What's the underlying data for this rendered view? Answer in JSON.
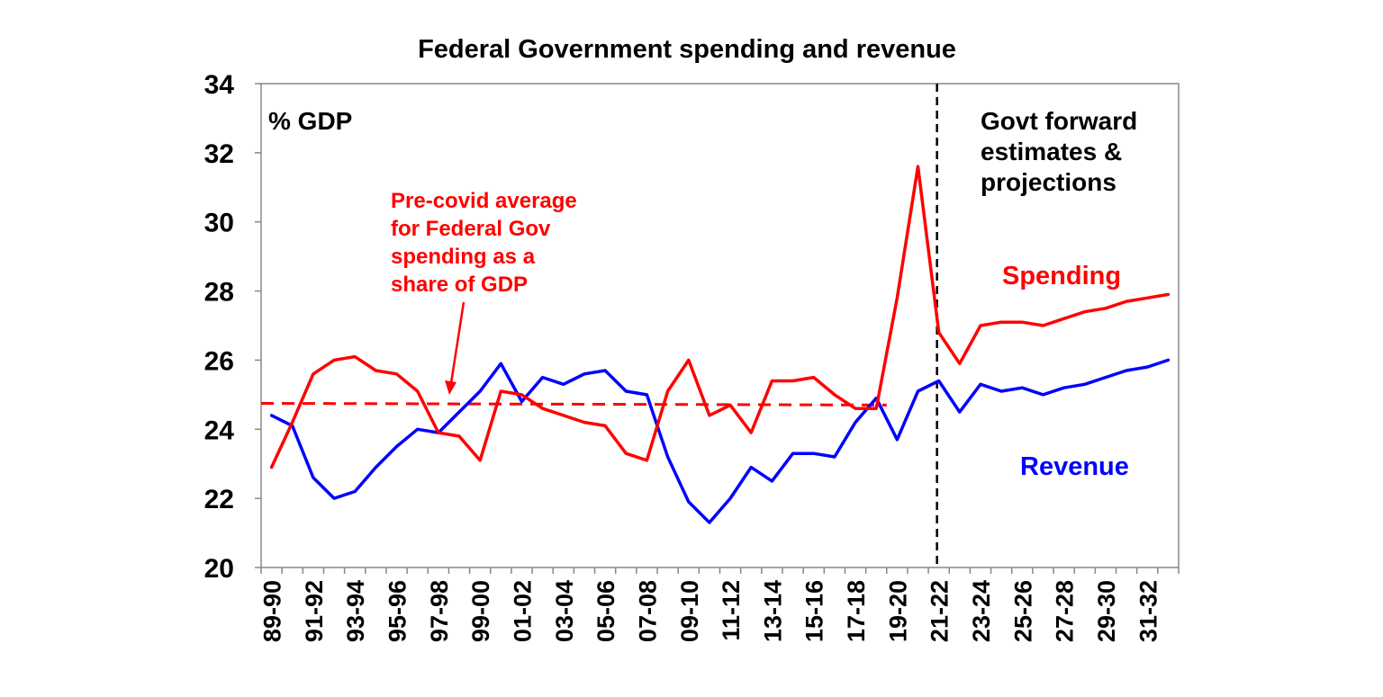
{
  "chart_data": {
    "type": "line",
    "title": "Federal Government spending and revenue",
    "ylabel": "% GDP",
    "xlabel": "",
    "ylim": [
      20,
      34
    ],
    "yticks": [
      20,
      22,
      24,
      26,
      28,
      30,
      32,
      34
    ],
    "categories": [
      "89-90",
      "90-91",
      "91-92",
      "92-93",
      "93-94",
      "94-95",
      "95-96",
      "96-97",
      "97-98",
      "98-99",
      "99-00",
      "00-01",
      "01-02",
      "02-03",
      "03-04",
      "04-05",
      "05-06",
      "06-07",
      "07-08",
      "08-09",
      "09-10",
      "10-11",
      "11-12",
      "12-13",
      "13-14",
      "14-15",
      "15-16",
      "16-17",
      "17-18",
      "18-19",
      "19-20",
      "20-21",
      "21-22",
      "22-23",
      "23-24",
      "24-25",
      "25-26",
      "26-27",
      "27-28",
      "28-29",
      "29-30",
      "30-31",
      "31-32",
      "32-33"
    ],
    "tick_labels": [
      "89-90",
      "91-92",
      "93-94",
      "95-96",
      "97-98",
      "99-00",
      "01-02",
      "03-04",
      "05-06",
      "07-08",
      "09-10",
      "11-12",
      "13-14",
      "15-16",
      "17-18",
      "19-20",
      "21-22",
      "23-24",
      "25-26",
      "27-28",
      "29-30",
      "31-32"
    ],
    "series": [
      {
        "name": "Spending",
        "color": "#ff0000",
        "values": [
          22.9,
          24.2,
          25.6,
          26.0,
          26.1,
          25.7,
          25.6,
          25.1,
          23.9,
          23.8,
          23.1,
          25.1,
          25.0,
          24.6,
          24.4,
          24.2,
          24.1,
          23.3,
          23.1,
          25.1,
          26.0,
          24.4,
          24.7,
          23.9,
          25.4,
          25.4,
          25.5,
          25.0,
          24.6,
          24.6,
          27.8,
          31.6,
          26.8,
          25.9,
          27.0,
          27.1,
          27.1,
          27.0,
          27.2,
          27.4,
          27.5,
          27.7,
          27.8,
          27.9
        ]
      },
      {
        "name": "Revenue",
        "color": "#0000ff",
        "values": [
          24.4,
          24.1,
          22.6,
          22.0,
          22.2,
          22.9,
          23.5,
          24.0,
          23.9,
          24.5,
          25.1,
          25.9,
          24.8,
          25.5,
          25.3,
          25.6,
          25.7,
          25.1,
          25.0,
          23.2,
          21.9,
          21.3,
          22.0,
          22.9,
          22.5,
          23.3,
          23.3,
          23.2,
          24.2,
          24.9,
          23.7,
          25.1,
          25.4,
          24.5,
          25.3,
          25.1,
          25.2,
          25.0,
          25.2,
          25.3,
          25.5,
          25.7,
          25.8,
          26.0
        ]
      }
    ],
    "reference_line": {
      "label": "Pre-covid average for Federal Gov spending as a share of GDP",
      "lines": [
        "Pre-covid average",
        "for Federal Gov",
        "spending as a",
        "share of GDP"
      ],
      "value": 24.75,
      "value_end": 24.7,
      "color": "#ff0000",
      "style": "dashed"
    },
    "forecast_divider": {
      "at_category": "21-22",
      "label_lines": [
        "Govt forward",
        "estimates &",
        "projections"
      ],
      "style": "dashed",
      "color": "#000000"
    },
    "series_labels": {
      "spending": "Spending",
      "revenue": "Revenue"
    },
    "legend": "inline"
  }
}
